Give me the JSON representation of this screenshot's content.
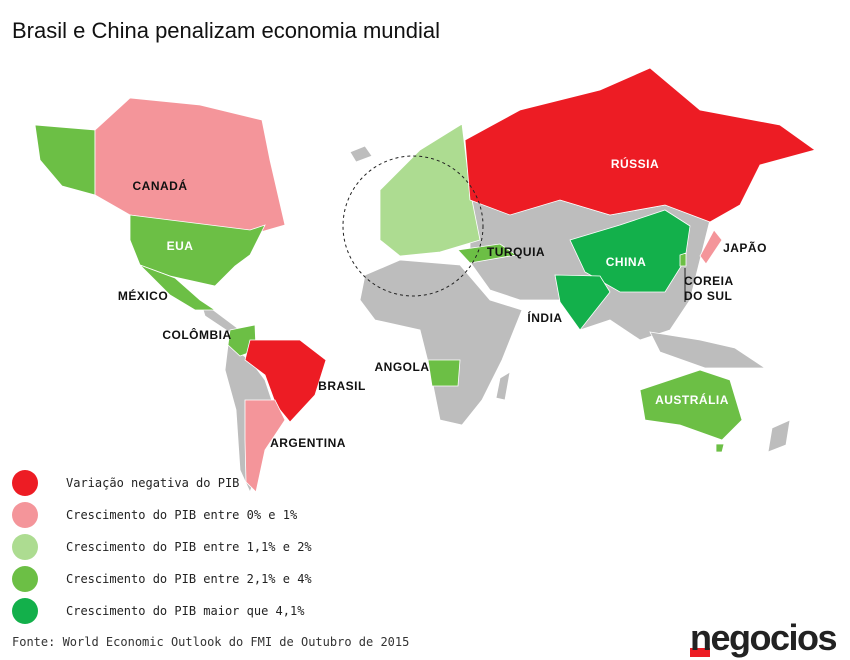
{
  "title": "Brasil e China penalizam economia mundial",
  "countries": [
    "RÚSSIA",
    "CANADÁ",
    "EUA",
    "MÉXICO",
    "COLÔMBIA",
    "BRASIL",
    "ARGENTINA",
    "ANGOLA",
    "TURQUIA",
    "CHINA",
    "ÍNDIA",
    "JAPÃO",
    "COREIA DO SUL",
    "AUSTRÁLIA"
  ],
  "legend": [
    {
      "name": "Variação negativa do PIB",
      "color": "#ed1c24"
    },
    {
      "name": "Crescimento do PIB entre 0% e 1%",
      "color": "#f4959a"
    },
    {
      "name": "Crescimento do PIB entre 1,1% e 2%",
      "color": "#addc91"
    },
    {
      "name": "Crescimento do PIB entre 2,1% e 4%",
      "color": "#6cbf45"
    },
    {
      "name": "Crescimento do PIB maior que 4,1%",
      "color": "#13b04b"
    }
  ],
  "source": "Fonte: World Economic Outlook do FMI de Outubro de 2015",
  "logo": "negocios"
}
